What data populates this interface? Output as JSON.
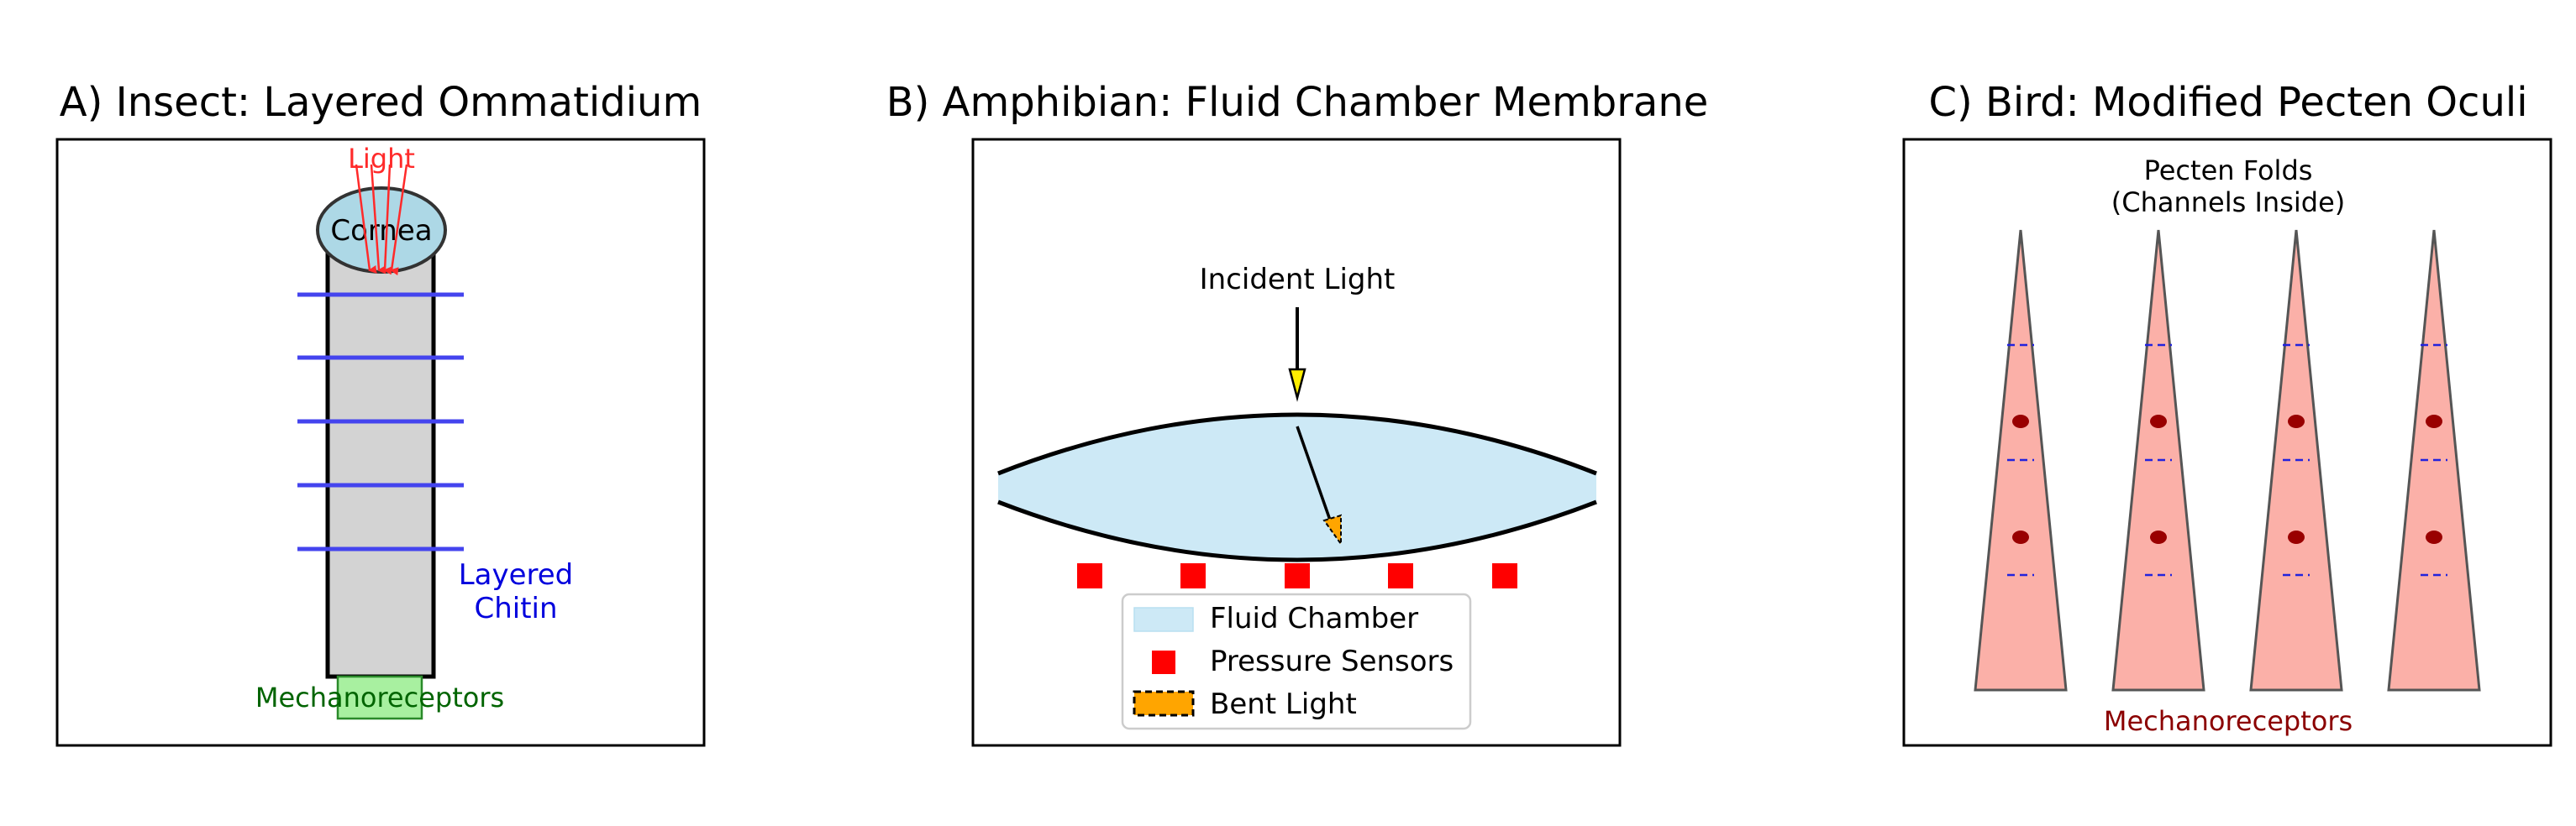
{
  "panels": {
    "a": {
      "title": "A) Insect: Layered Ommatidium",
      "light_label": "Light",
      "cornea_label": "Cornea",
      "chitin_label_line1": "Layered",
      "chitin_label_line2": "Chitin",
      "mechanoreceptor_label": "Mechanoreceptors"
    },
    "b": {
      "title": "B) Amphibian: Fluid Chamber Membrane",
      "incident_label": "Incident Light",
      "legend": {
        "fluid": "Fluid Chamber",
        "sensors": "Pressure Sensors",
        "bent": "Bent Light"
      }
    },
    "c": {
      "title": "C) Bird: Modified Pecten Oculi",
      "folds_label_line1": "Pecten Folds",
      "folds_label_line2": "(Channels Inside)",
      "mechanoreceptor_label": "Mechanoreceptors"
    }
  },
  "colors": {
    "light": "#ff2a2a",
    "cornea": "#add8e6",
    "chitin_layers": "#4444ee",
    "shaft": "#d3d3d3",
    "mechanoreceptor_box": "#a8f0a0",
    "mechanoreceptor_text": "#006400",
    "fluid": "#cde9f6",
    "sensor": "#ff0000",
    "bent_light": "#ffa500",
    "fold": "#fbb0a8",
    "fold_dot": "#990000",
    "fold_label": "#8b0000"
  }
}
